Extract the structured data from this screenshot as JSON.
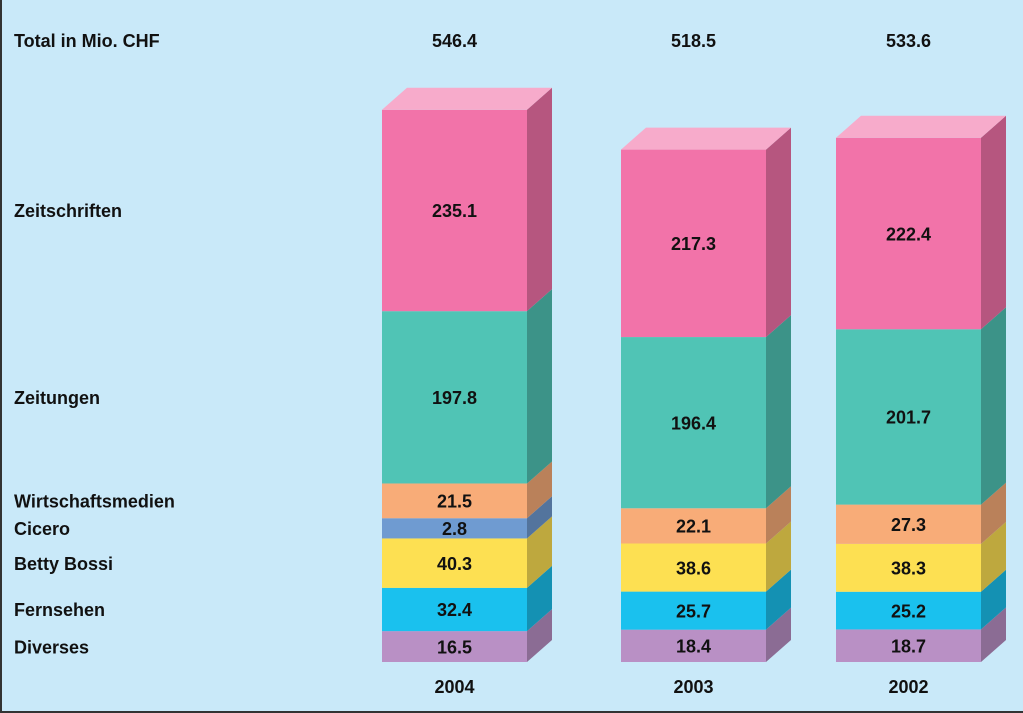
{
  "chart_data": {
    "type": "bar3d-stacked",
    "total_label": "Total in Mio. CHF",
    "categories": [
      "2004",
      "2003",
      "2002"
    ],
    "totals": [
      546.4,
      518.5,
      533.6
    ],
    "series": [
      {
        "name": "Diverses",
        "color": "#b990c5",
        "values": [
          16.5,
          18.4,
          18.7
        ]
      },
      {
        "name": "Fernsehen",
        "color": "#1ac1ee",
        "values": [
          32.4,
          25.7,
          25.2
        ]
      },
      {
        "name": "Betty Bossi",
        "color": "#fde052",
        "values": [
          40.3,
          38.6,
          38.3
        ]
      },
      {
        "name": "Cicero",
        "color": "#6f9bd1",
        "values": [
          2.8,
          null,
          null
        ]
      },
      {
        "name": "Wirtschaftsmedien",
        "color": "#f8ac78",
        "values": [
          21.5,
          22.1,
          27.3
        ]
      },
      {
        "name": "Zeitungen",
        "color": "#50c4b5",
        "values": [
          197.8,
          196.4,
          201.7
        ]
      },
      {
        "name": "Zeitschriften",
        "color": "#f273a9",
        "values": [
          235.1,
          217.3,
          222.4
        ]
      }
    ]
  }
}
